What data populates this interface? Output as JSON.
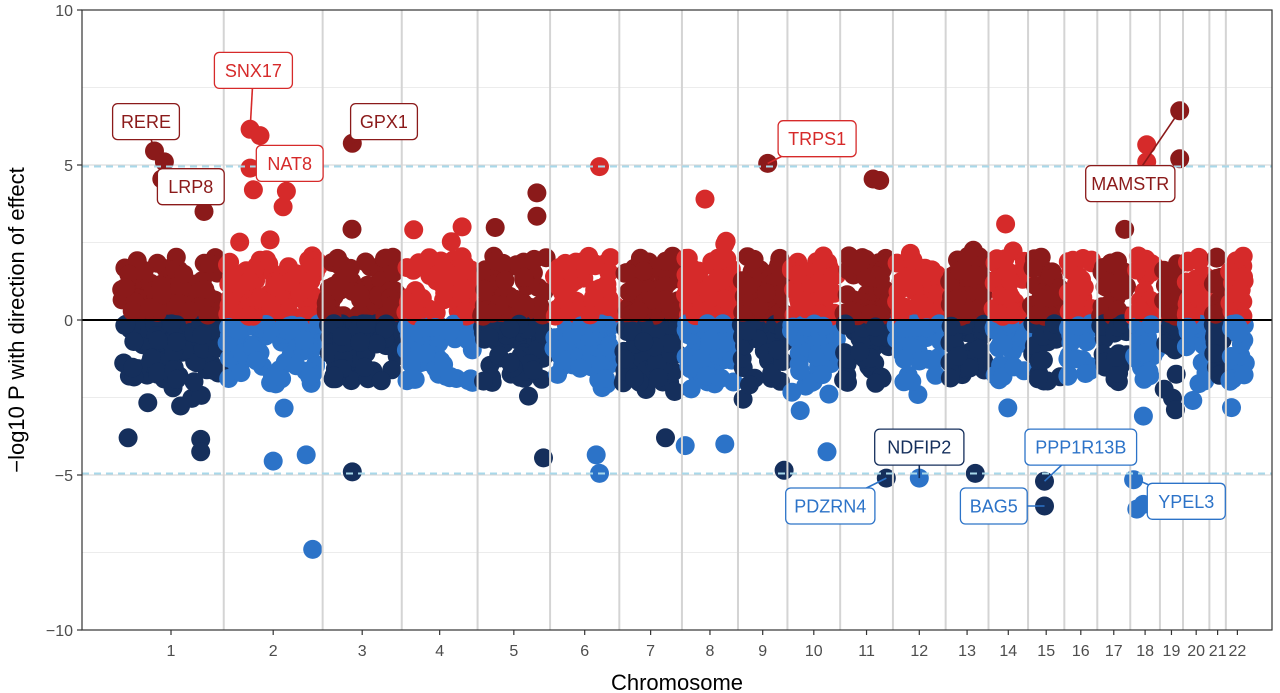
{
  "chart_data": {
    "type": "scatter",
    "subtype": "miami-plot",
    "title": "",
    "xlabel": "Chromosome",
    "ylabel": "−log10 P with direction of effect",
    "ylim": [
      -10,
      10
    ],
    "yticks": [
      10,
      5,
      0,
      -5,
      -10
    ],
    "ytick_labels": [
      "10",
      "5",
      "0",
      "−5",
      "−10"
    ],
    "threshold": 4.95,
    "grid": true,
    "colors": {
      "pos_dark": "#8b1a1a",
      "pos_light": "#d62a2a",
      "neg_dark": "#152f5c",
      "neg_light": "#2c73c8",
      "threshold_line": "#a8d8ea",
      "zero_line": "#000000",
      "grid_major": "#d4d4d4",
      "grid_minor": "#ececec"
    },
    "chromosomes": [
      {
        "name": "1",
        "start": 0,
        "end": 1.6
      },
      {
        "name": "2",
        "start": 1.6,
        "end": 3.1
      },
      {
        "name": "3",
        "start": 3.1,
        "end": 4.3
      },
      {
        "name": "4",
        "start": 4.3,
        "end": 5.45
      },
      {
        "name": "5",
        "start": 5.45,
        "end": 6.55
      },
      {
        "name": "6",
        "start": 6.55,
        "end": 7.6
      },
      {
        "name": "7",
        "start": 7.6,
        "end": 8.55
      },
      {
        "name": "8",
        "start": 8.55,
        "end": 9.4
      },
      {
        "name": "9",
        "start": 9.4,
        "end": 10.15
      },
      {
        "name": "10",
        "start": 10.15,
        "end": 10.95
      },
      {
        "name": "11",
        "start": 10.95,
        "end": 11.75
      },
      {
        "name": "12",
        "start": 11.75,
        "end": 12.55
      },
      {
        "name": "13",
        "start": 12.55,
        "end": 13.2
      },
      {
        "name": "14",
        "start": 13.2,
        "end": 13.8
      },
      {
        "name": "15",
        "start": 13.8,
        "end": 14.35
      },
      {
        "name": "16",
        "start": 14.35,
        "end": 14.85
      },
      {
        "name": "17",
        "start": 14.85,
        "end": 15.35
      },
      {
        "name": "18",
        "start": 15.35,
        "end": 15.8
      },
      {
        "name": "19",
        "start": 15.8,
        "end": 16.15
      },
      {
        "name": "20",
        "start": 16.15,
        "end": 16.55
      },
      {
        "name": "21",
        "start": 16.55,
        "end": 16.8
      },
      {
        "name": "22",
        "start": 16.8,
        "end": 17.15
      }
    ],
    "highlights": [
      {
        "x": 0.55,
        "y": 5.45
      },
      {
        "x": 0.7,
        "y": 5.1
      },
      {
        "x": 0.66,
        "y": 4.55
      },
      {
        "x": 1.3,
        "y": 3.5
      },
      {
        "x": 2.0,
        "y": 6.15
      },
      {
        "x": 2.15,
        "y": 5.95
      },
      {
        "x": 2.0,
        "y": 4.9
      },
      {
        "x": 2.05,
        "y": 4.2
      },
      {
        "x": 2.55,
        "y": 4.15
      },
      {
        "x": 2.5,
        "y": 3.65
      },
      {
        "x": 3.55,
        "y": 5.7
      },
      {
        "x": 7.3,
        "y": 4.95
      },
      {
        "x": 8.9,
        "y": 3.9
      },
      {
        "x": 9.85,
        "y": 5.05
      },
      {
        "x": 11.55,
        "y": 4.5
      },
      {
        "x": 11.45,
        "y": 4.55
      },
      {
        "x": 6.35,
        "y": 4.1
      },
      {
        "x": 6.35,
        "y": 3.35
      },
      {
        "x": 15.6,
        "y": 5.65
      },
      {
        "x": 15.6,
        "y": 5.1
      },
      {
        "x": 16.1,
        "y": 6.75
      },
      {
        "x": 16.1,
        "y": 5.2
      },
      {
        "x": 2.95,
        "y": -7.4
      },
      {
        "x": 2.35,
        "y": -4.55
      },
      {
        "x": 3.55,
        "y": -4.9
      },
      {
        "x": 2.85,
        "y": -4.35
      },
      {
        "x": 7.3,
        "y": -4.95
      },
      {
        "x": 6.45,
        "y": -4.45
      },
      {
        "x": 7.25,
        "y": -4.35
      },
      {
        "x": 8.3,
        "y": -3.8
      },
      {
        "x": 8.6,
        "y": -4.05
      },
      {
        "x": 9.2,
        "y": -4.0
      },
      {
        "x": 10.1,
        "y": -4.85
      },
      {
        "x": 10.75,
        "y": -4.25
      },
      {
        "x": 11.65,
        "y": -5.1
      },
      {
        "x": 12.15,
        "y": -5.1
      },
      {
        "x": 13.0,
        "y": -4.95
      },
      {
        "x": 14.05,
        "y": -5.2
      },
      {
        "x": 14.05,
        "y": -6.0
      },
      {
        "x": 15.4,
        "y": -5.15
      },
      {
        "x": 15.55,
        "y": -5.95
      },
      {
        "x": 15.45,
        "y": -6.1
      },
      {
        "x": 1.25,
        "y": -3.85
      },
      {
        "x": 1.25,
        "y": -4.25
      },
      {
        "x": 0.15,
        "y": -3.8
      },
      {
        "x": 15.55,
        "y": -3.1
      }
    ],
    "annotations": [
      {
        "gene": "RERE",
        "x": 0.55,
        "y": 5.45,
        "lx": 0.42,
        "ly": 6.4,
        "color": "#8b1a1a"
      },
      {
        "gene": "LRP8",
        "x": 1.3,
        "y": 3.5,
        "lx": 1.1,
        "ly": 4.3,
        "color": "#8b1a1a"
      },
      {
        "gene": "SNX17",
        "x": 2.0,
        "y": 6.15,
        "lx": 2.05,
        "ly": 8.05,
        "color": "#d62a2a"
      },
      {
        "gene": "NAT8",
        "x": 2.55,
        "y": 4.15,
        "lx": 2.6,
        "ly": 5.05,
        "color": "#d62a2a"
      },
      {
        "gene": "GPX1",
        "x": 3.55,
        "y": 5.7,
        "lx": 4.03,
        "ly": 6.4,
        "color": "#8b1a1a"
      },
      {
        "gene": "TRPS1",
        "x": 9.85,
        "y": 5.05,
        "lx": 10.6,
        "ly": 5.85,
        "color": "#d62a2a"
      },
      {
        "gene": "MAMSTR",
        "x": 16.1,
        "y": 6.75,
        "lx": 15.35,
        "ly": 4.4,
        "color": "#8b1a1a"
      },
      {
        "gene": "NDFIP2",
        "x": 12.15,
        "y": -5.1,
        "lx": 12.15,
        "ly": -4.1,
        "color": "#152f5c"
      },
      {
        "gene": "PPP1R13B",
        "x": 14.05,
        "y": -5.2,
        "lx": 14.6,
        "ly": -4.1,
        "color": "#2c73c8"
      },
      {
        "gene": "PDZRN4",
        "x": 11.65,
        "y": -5.1,
        "lx": 10.8,
        "ly": -6.0,
        "color": "#2c73c8"
      },
      {
        "gene": "BAG5",
        "x": 14.05,
        "y": -6.0,
        "lx": 13.28,
        "ly": -6.0,
        "color": "#2c73c8"
      },
      {
        "gene": "YPEL3",
        "x": 15.45,
        "y": -5.15,
        "lx": 16.2,
        "ly": -5.85,
        "color": "#2c73c8"
      }
    ]
  }
}
